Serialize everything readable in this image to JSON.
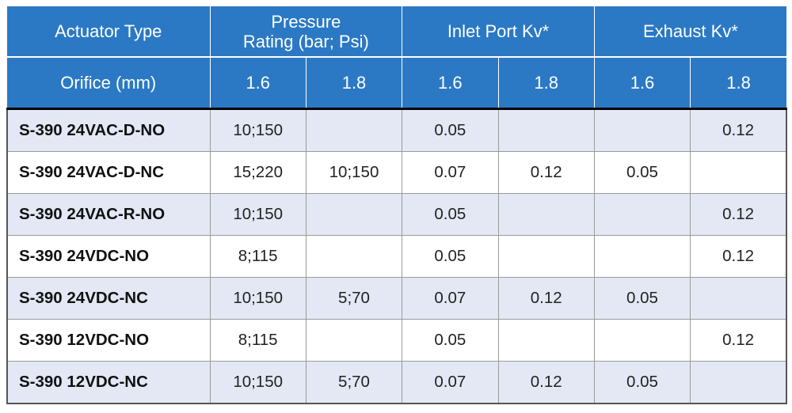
{
  "header": {
    "actuator_type": "Actuator Type",
    "pressure_line1": "Pressure",
    "pressure_line2": "Rating (bar; Psi)",
    "inlet_port": "Inlet Port Kv*",
    "exhaust": "Exhaust Kv*",
    "orifice": "Orifice (mm)",
    "sizes": [
      "1.6",
      "1.8",
      "1.6",
      "1.8",
      "1.6",
      "1.8"
    ]
  },
  "rows": [
    {
      "name": "S-390 24VAC-D-NO",
      "cells": [
        "10;150",
        "",
        "0.05",
        "",
        "",
        "0.12"
      ]
    },
    {
      "name": "S-390 24VAC-D-NC",
      "cells": [
        "15;220",
        "10;150",
        "0.07",
        "0.12",
        "0.05",
        ""
      ]
    },
    {
      "name": "S-390 24VAC-R-NO",
      "cells": [
        "10;150",
        "",
        "0.05",
        "",
        "",
        "0.12"
      ]
    },
    {
      "name": "S-390 24VDC-NO",
      "cells": [
        "8;115",
        "",
        "0.05",
        "",
        "",
        "0.12"
      ]
    },
    {
      "name": "S-390 24VDC-NC",
      "cells": [
        "10;150",
        "5;70",
        "0.07",
        "0.12",
        "0.05",
        ""
      ]
    },
    {
      "name": "S-390 12VDC-NO",
      "cells": [
        "8;115",
        "",
        "0.05",
        "",
        "",
        "0.12"
      ]
    },
    {
      "name": "S-390 12VDC-NC",
      "cells": [
        "10;150",
        "5;70",
        "0.07",
        "0.12",
        "0.05",
        ""
      ]
    }
  ],
  "colors": {
    "header_bg": "#2b79c4",
    "row_shade": "#e3e8f4"
  }
}
